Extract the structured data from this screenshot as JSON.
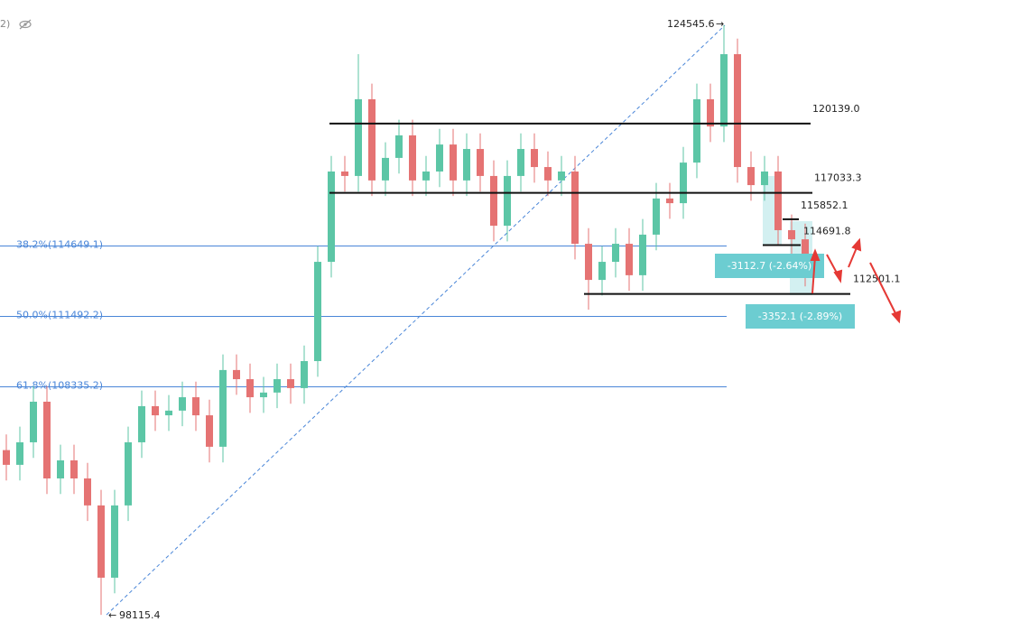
{
  "chart_data": {
    "type": "candlestick",
    "header": "2)",
    "ylim": [
      97390,
      125679
    ],
    "up_color": "#5cc6a6",
    "down_color": "#e57373",
    "open": [
      105500,
      104840,
      105850,
      107670,
      104230,
      105040,
      104230,
      103020,
      99780,
      103020,
      105850,
      107470,
      107060,
      107270,
      107870,
      107060,
      105650,
      109090,
      108680,
      107870,
      108080,
      108680,
      108280,
      109490,
      113940,
      117990,
      117790,
      121230,
      117590,
      118600,
      119610,
      117590,
      117990,
      119200,
      117590,
      119000,
      117790,
      115560,
      117790,
      119000,
      118190,
      117590,
      117990,
      114750,
      113130,
      113940,
      114750,
      113340,
      115160,
      116780,
      116570,
      118390,
      121230,
      120010,
      123250,
      118190,
      117380,
      117990,
      115360,
      114950
    ],
    "high": [
      106200,
      106550,
      108370,
      108370,
      105740,
      105740,
      104930,
      103720,
      103720,
      106550,
      108170,
      108170,
      107970,
      108570,
      108570,
      107760,
      109790,
      109790,
      109380,
      108780,
      109380,
      109380,
      110190,
      114640,
      118690,
      118690,
      123250,
      121930,
      119300,
      120310,
      120310,
      118690,
      119900,
      119900,
      119700,
      119700,
      118490,
      118490,
      119700,
      119700,
      118890,
      118690,
      118690,
      115450,
      114640,
      115450,
      115450,
      115860,
      117480,
      117480,
      119090,
      121930,
      121930,
      124545.6,
      123950,
      118890,
      118690,
      118690,
      116060,
      115650
    ],
    "low": [
      104140,
      104140,
      105150,
      103530,
      103530,
      103530,
      102320,
      98115.4,
      99080,
      102320,
      105150,
      106360,
      106360,
      106570,
      106360,
      104950,
      104950,
      107980,
      107170,
      107170,
      107380,
      107580,
      107580,
      108790,
      113240,
      117090,
      117090,
      116890,
      116890,
      117900,
      116890,
      116890,
      117290,
      116890,
      116890,
      117090,
      114860,
      114860,
      117090,
      117490,
      116890,
      116890,
      114050,
      111800,
      112430,
      113240,
      112640,
      112640,
      114460,
      115870,
      115870,
      117690,
      119310,
      119310,
      117490,
      116680,
      116680,
      114660,
      114250,
      112840
    ],
    "close": [
      104840,
      105850,
      107670,
      104230,
      105040,
      104230,
      103020,
      99780,
      103020,
      105850,
      107470,
      107060,
      107270,
      107870,
      107060,
      105650,
      109090,
      108680,
      107870,
      108080,
      108680,
      108280,
      109490,
      113940,
      117990,
      117790,
      121230,
      117590,
      118600,
      119610,
      117590,
      117990,
      119200,
      117590,
      119000,
      117790,
      115560,
      117790,
      119000,
      118190,
      117590,
      117990,
      114750,
      113130,
      113940,
      114750,
      113340,
      115160,
      116780,
      116570,
      118390,
      121230,
      120010,
      123250,
      118190,
      117380,
      117990,
      115360,
      114950,
      113540
    ],
    "trend": [
      {
        "value": 98115.4,
        "label": "98115.4"
      },
      {
        "value": 124545.6,
        "label": "124545.6"
      }
    ],
    "levels": [
      {
        "value": 120139.0,
        "label": "120139.0"
      },
      {
        "value": 117033.3,
        "label": "117033.3"
      },
      {
        "value": 115852.1,
        "label": "115852.1"
      },
      {
        "value": 114691.8,
        "label": "114691.8"
      },
      {
        "value": 112501.1,
        "label": "112501.1"
      }
    ],
    "fib": [
      {
        "value": 114649.1,
        "label": "38.2%(114649.1)"
      },
      {
        "value": 111492.2,
        "label": "50.0%(111492.2)"
      },
      {
        "value": 108335.2,
        "label": "61.8%(108335.2)"
      }
    ],
    "fib_color": "#4a86d8",
    "measures": [
      "-3112.7 (-2.64%)",
      "-3352.1 (-2.89%)"
    ],
    "measure_color": "#6ccdd1"
  }
}
